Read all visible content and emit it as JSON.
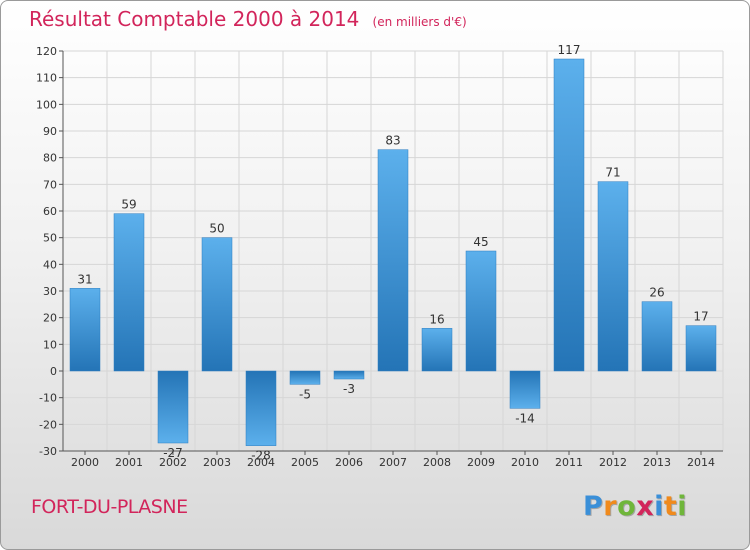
{
  "title": "Résultat Comptable 2000 à 2014",
  "subtitle": "(en milliers d'€)",
  "town": "FORT-DU-PLASNE",
  "logo": {
    "letters": [
      "P",
      "r",
      "o",
      "x",
      "i",
      "t",
      "i"
    ],
    "colors": [
      "#3a8fd8",
      "#f08a1c",
      "#6fb63a",
      "#d2255b",
      "#3a8fd8",
      "#f08a1c",
      "#6fb63a"
    ]
  },
  "chart_data": {
    "type": "bar",
    "title": "Résultat Comptable 2000 à 2014",
    "xlabel": "",
    "ylabel": "",
    "categories": [
      "2000",
      "2001",
      "2002",
      "2003",
      "2004",
      "2005",
      "2006",
      "2007",
      "2008",
      "2009",
      "2010",
      "2011",
      "2012",
      "2013",
      "2014"
    ],
    "values": [
      31,
      59,
      -27,
      50,
      -28,
      -5,
      -3,
      83,
      16,
      45,
      -14,
      117,
      71,
      26,
      17
    ],
    "ylim": [
      -30,
      120
    ],
    "yticks": [
      -30,
      -20,
      -10,
      0,
      10,
      20,
      30,
      40,
      50,
      60,
      70,
      80,
      90,
      100,
      110,
      120
    ],
    "grid": true,
    "bar_color": "#3d97dc"
  }
}
